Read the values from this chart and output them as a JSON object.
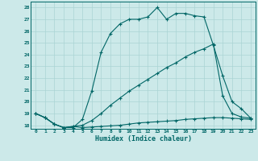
{
  "xlabel": "Humidex (Indice chaleur)",
  "bg_color": "#cce9e9",
  "grid_color": "#aad4d4",
  "line_color": "#006666",
  "xlim": [
    -0.5,
    23.5
  ],
  "ylim": [
    17.7,
    28.5
  ],
  "xticks": [
    0,
    1,
    2,
    3,
    4,
    5,
    6,
    7,
    8,
    9,
    10,
    11,
    12,
    13,
    14,
    15,
    16,
    17,
    18,
    19,
    20,
    21,
    22,
    23
  ],
  "yticks": [
    18,
    19,
    20,
    21,
    22,
    23,
    24,
    25,
    26,
    27,
    28
  ],
  "curve1_x": [
    0,
    1,
    2,
    3,
    4,
    5,
    6,
    7,
    8,
    9,
    10,
    11,
    12,
    13,
    14,
    15,
    16,
    17,
    18,
    19,
    20,
    21,
    22,
    23
  ],
  "curve1_y": [
    19.0,
    18.65,
    18.1,
    17.8,
    17.8,
    18.5,
    20.9,
    24.2,
    25.8,
    26.6,
    27.0,
    27.0,
    27.2,
    28.0,
    27.0,
    27.5,
    27.5,
    27.3,
    27.2,
    24.8,
    22.2,
    20.0,
    19.4,
    18.6
  ],
  "curve2_x": [
    0,
    1,
    2,
    3,
    4,
    5,
    6,
    7,
    8,
    9,
    10,
    11,
    12,
    13,
    14,
    15,
    16,
    17,
    18,
    19,
    20,
    21,
    22,
    23
  ],
  "curve2_y": [
    19.0,
    18.65,
    18.1,
    17.8,
    17.9,
    18.0,
    18.4,
    19.0,
    19.7,
    20.3,
    20.9,
    21.4,
    21.9,
    22.4,
    22.9,
    23.3,
    23.8,
    24.2,
    24.5,
    24.9,
    20.5,
    19.0,
    18.7,
    18.6
  ],
  "curve3_x": [
    0,
    1,
    2,
    3,
    4,
    5,
    6,
    7,
    8,
    9,
    10,
    11,
    12,
    13,
    14,
    15,
    16,
    17,
    18,
    19,
    20,
    21,
    22,
    23
  ],
  "curve3_y": [
    19.0,
    18.65,
    18.1,
    17.8,
    17.9,
    17.8,
    17.85,
    17.9,
    17.95,
    18.0,
    18.1,
    18.2,
    18.25,
    18.3,
    18.35,
    18.4,
    18.5,
    18.55,
    18.6,
    18.65,
    18.65,
    18.6,
    18.55,
    18.5
  ]
}
